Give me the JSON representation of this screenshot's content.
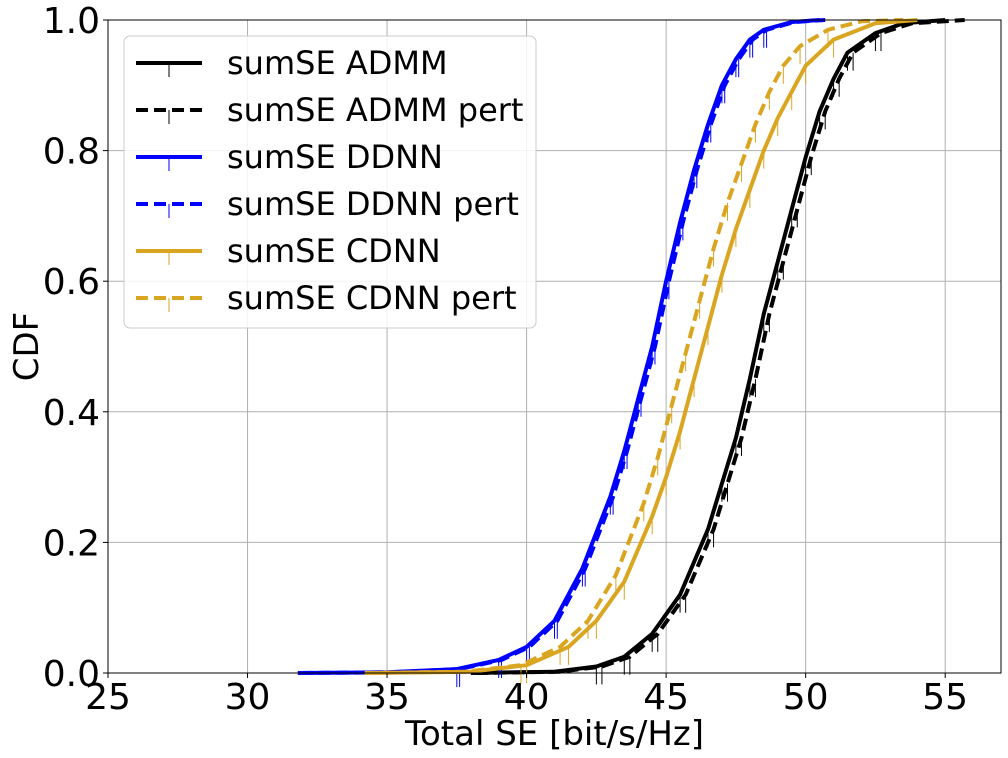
{
  "chart_data": {
    "type": "line",
    "title": "",
    "xlabel": "Total SE [bit/s/Hz]",
    "ylabel": "CDF",
    "xlim": [
      25,
      57
    ],
    "ylim": [
      0,
      1
    ],
    "xticks": [
      "25",
      "30",
      "35",
      "40",
      "45",
      "50",
      "55"
    ],
    "yticks": [
      "0.0",
      "0.2",
      "0.4",
      "0.6",
      "0.8",
      "1.0"
    ],
    "grid": true,
    "legend_position": "top-left",
    "series": [
      {
        "name": "sumSE ADMM",
        "color": "#000000",
        "style": "solid",
        "x": [
          38.0,
          41.0,
          42.5,
          43.5,
          44.5,
          45.5,
          46.5,
          47.0,
          47.5,
          48.0,
          48.5,
          49.0,
          49.5,
          50.0,
          50.5,
          51.0,
          51.5,
          52.5,
          53.5,
          55.0
        ],
        "y": [
          0.0,
          0.002,
          0.01,
          0.025,
          0.06,
          0.12,
          0.22,
          0.29,
          0.36,
          0.45,
          0.55,
          0.63,
          0.71,
          0.79,
          0.86,
          0.91,
          0.95,
          0.98,
          0.995,
          1.0
        ]
      },
      {
        "name": "sumSE ADMM pert",
        "color": "#000000",
        "style": "dashed",
        "x": [
          38.2,
          41.2,
          42.7,
          43.7,
          44.7,
          45.7,
          46.7,
          47.2,
          47.7,
          48.2,
          48.7,
          49.2,
          49.7,
          50.2,
          50.7,
          51.2,
          51.7,
          52.7,
          53.8,
          55.7
        ],
        "y": [
          0.0,
          0.002,
          0.01,
          0.025,
          0.06,
          0.12,
          0.22,
          0.29,
          0.36,
          0.45,
          0.55,
          0.63,
          0.71,
          0.79,
          0.86,
          0.91,
          0.95,
          0.98,
          0.995,
          1.0
        ]
      },
      {
        "name": "sumSE DDNN",
        "color": "#0000ff",
        "style": "solid",
        "x": [
          31.8,
          35.0,
          37.5,
          39.0,
          40.0,
          41.0,
          42.0,
          43.0,
          43.5,
          44.0,
          44.5,
          45.0,
          45.5,
          46.0,
          46.5,
          47.0,
          47.5,
          48.0,
          48.5,
          49.5,
          50.5
        ],
        "y": [
          0.0,
          0.001,
          0.006,
          0.02,
          0.04,
          0.08,
          0.16,
          0.27,
          0.34,
          0.42,
          0.5,
          0.6,
          0.69,
          0.77,
          0.84,
          0.9,
          0.94,
          0.97,
          0.985,
          0.997,
          1.0
        ]
      },
      {
        "name": "sumSE DDNN pert",
        "color": "#0000ff",
        "style": "dashed",
        "x": [
          31.9,
          35.1,
          37.6,
          39.1,
          40.1,
          41.1,
          42.1,
          43.1,
          43.6,
          44.1,
          44.6,
          45.1,
          45.6,
          46.1,
          46.6,
          47.1,
          47.6,
          48.1,
          48.6,
          49.6,
          50.7
        ],
        "y": [
          0.0,
          0.001,
          0.006,
          0.02,
          0.04,
          0.08,
          0.16,
          0.27,
          0.34,
          0.42,
          0.5,
          0.6,
          0.69,
          0.77,
          0.84,
          0.9,
          0.94,
          0.97,
          0.985,
          0.997,
          1.0
        ]
      },
      {
        "name": "sumSE CDNN",
        "color": "#daa520",
        "style": "solid",
        "x": [
          34.5,
          38.0,
          40.0,
          41.5,
          42.5,
          43.5,
          44.5,
          45.0,
          45.5,
          46.0,
          46.5,
          47.0,
          47.5,
          48.0,
          48.5,
          49.0,
          49.5,
          50.0,
          51.0,
          52.5,
          54.0
        ],
        "y": [
          0.0,
          0.002,
          0.012,
          0.04,
          0.08,
          0.14,
          0.24,
          0.3,
          0.37,
          0.45,
          0.53,
          0.61,
          0.68,
          0.74,
          0.8,
          0.85,
          0.89,
          0.93,
          0.97,
          0.995,
          1.0
        ]
      },
      {
        "name": "sumSE CDNN pert",
        "color": "#daa520",
        "style": "dashed",
        "x": [
          34.2,
          37.8,
          39.8,
          41.2,
          42.2,
          43.2,
          44.2,
          44.7,
          45.2,
          45.7,
          46.2,
          46.7,
          47.2,
          47.7,
          48.2,
          48.7,
          49.2,
          49.8,
          50.8,
          52.0,
          53.5
        ],
        "y": [
          0.0,
          0.002,
          0.012,
          0.04,
          0.08,
          0.15,
          0.26,
          0.33,
          0.41,
          0.49,
          0.57,
          0.65,
          0.72,
          0.78,
          0.84,
          0.89,
          0.93,
          0.96,
          0.985,
          0.998,
          1.0
        ]
      }
    ]
  }
}
